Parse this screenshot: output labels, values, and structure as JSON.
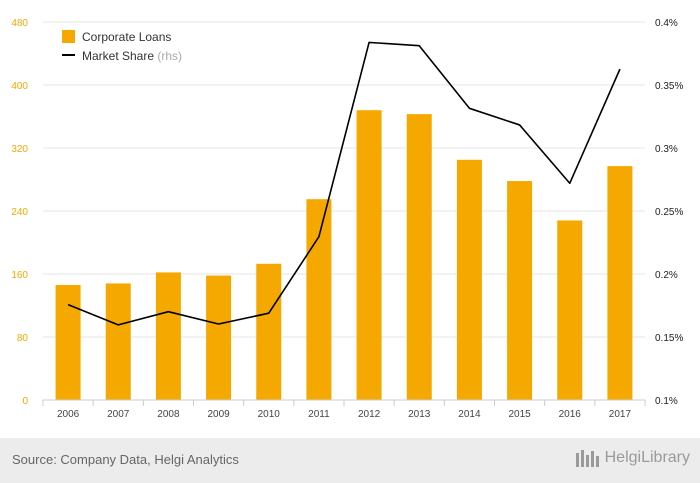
{
  "chart_data": {
    "type": "bar",
    "categories": [
      "2006",
      "2007",
      "2008",
      "2009",
      "2010",
      "2011",
      "2012",
      "2013",
      "2014",
      "2015",
      "2016",
      "2017"
    ],
    "series": [
      {
        "name": "Corporate Loans",
        "type": "bar",
        "axis": "left",
        "color": "#f5a800",
        "values": [
          146,
          148,
          162,
          158,
          173,
          255,
          368,
          363,
          305,
          278,
          228,
          297
        ]
      },
      {
        "name": "Market Share",
        "legend_note": "(rhs)",
        "type": "line",
        "axis": "right",
        "color": "#000000",
        "values": [
          0.1757,
          0.1596,
          0.1701,
          0.1603,
          0.1689,
          0.2296,
          0.3838,
          0.3812,
          0.3315,
          0.3183,
          0.272,
          0.3626
        ]
      }
    ],
    "y_left": {
      "min": 0,
      "max": 480,
      "ticks": [
        "0",
        "80",
        "160",
        "240",
        "320",
        "400",
        "480"
      ]
    },
    "y_right": {
      "min": 0.1,
      "max": 0.4,
      "ticks": [
        "0.1%",
        "0.15%",
        "0.2%",
        "0.25%",
        "0.3%",
        "0.35%",
        "0.4%"
      ]
    },
    "grid": "horizontal",
    "legend_position": "top-left"
  },
  "footer": {
    "source": "Source: Company Data, Helgi Analytics",
    "brand": "HelgiLibrary"
  }
}
